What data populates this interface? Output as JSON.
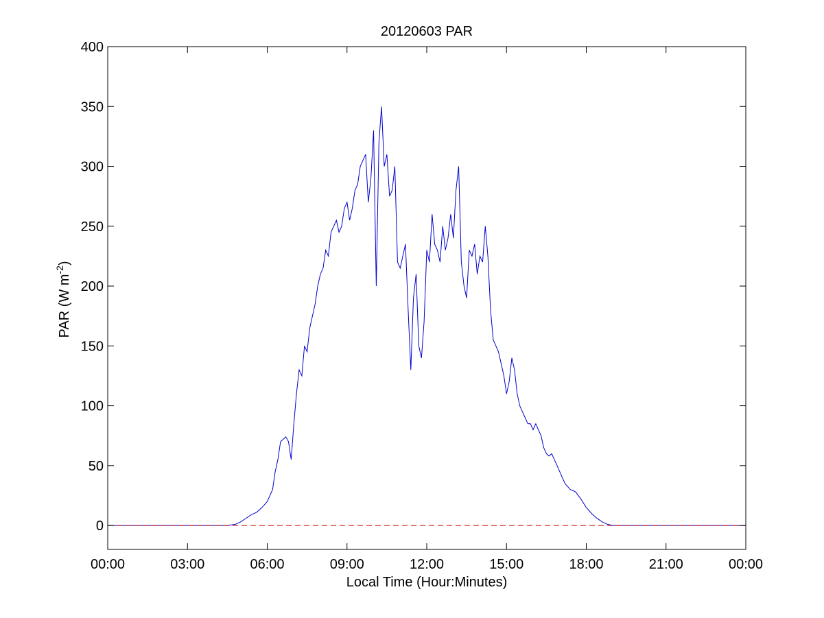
{
  "chart_data": {
    "type": "line",
    "title": "20120603 PAR",
    "xlabel": "Local Time (Hour:Minutes)",
    "ylabel": {
      "main": "PAR (W m",
      "sup": "-2",
      "close": ")"
    },
    "xlim": [
      0,
      24
    ],
    "ylim": [
      -20,
      400
    ],
    "x_ticks": [
      {
        "value": 0,
        "label": "00:00"
      },
      {
        "value": 3,
        "label": "03:00"
      },
      {
        "value": 6,
        "label": "06:00"
      },
      {
        "value": 9,
        "label": "09:00"
      },
      {
        "value": 12,
        "label": "12:00"
      },
      {
        "value": 15,
        "label": "15:00"
      },
      {
        "value": 18,
        "label": "18:00"
      },
      {
        "value": 21,
        "label": "21:00"
      },
      {
        "value": 24,
        "label": "00:00"
      }
    ],
    "y_ticks": [
      {
        "value": 0,
        "label": "0"
      },
      {
        "value": 50,
        "label": "50"
      },
      {
        "value": 100,
        "label": "100"
      },
      {
        "value": 150,
        "label": "150"
      },
      {
        "value": 200,
        "label": "200"
      },
      {
        "value": 250,
        "label": "250"
      },
      {
        "value": 300,
        "label": "300"
      },
      {
        "value": 350,
        "label": "350"
      },
      {
        "value": 400,
        "label": "400"
      }
    ],
    "grid": false,
    "series": [
      {
        "color": "#0000cc",
        "style": "solid",
        "x": [
          0,
          4.5,
          4.8,
          5.0,
          5.2,
          5.4,
          5.6,
          5.8,
          6.0,
          6.2,
          6.3,
          6.4,
          6.5,
          6.6,
          6.7,
          6.8,
          6.9,
          7.0,
          7.1,
          7.2,
          7.3,
          7.4,
          7.5,
          7.6,
          7.7,
          7.8,
          7.9,
          8.0,
          8.1,
          8.2,
          8.3,
          8.4,
          8.5,
          8.6,
          8.7,
          8.8,
          8.9,
          9.0,
          9.1,
          9.2,
          9.3,
          9.4,
          9.5,
          9.6,
          9.7,
          9.8,
          9.9,
          10.0,
          10.1,
          10.2,
          10.3,
          10.4,
          10.5,
          10.6,
          10.7,
          10.8,
          10.9,
          11.0,
          11.1,
          11.2,
          11.3,
          11.4,
          11.5,
          11.6,
          11.7,
          11.8,
          11.9,
          12.0,
          12.1,
          12.2,
          12.3,
          12.4,
          12.5,
          12.6,
          12.7,
          12.8,
          12.9,
          13.0,
          13.1,
          13.2,
          13.3,
          13.4,
          13.5,
          13.6,
          13.7,
          13.8,
          13.9,
          14.0,
          14.1,
          14.2,
          14.3,
          14.4,
          14.5,
          14.6,
          14.7,
          14.8,
          14.9,
          15.0,
          15.1,
          15.2,
          15.3,
          15.4,
          15.5,
          15.6,
          15.7,
          15.8,
          15.9,
          16.0,
          16.1,
          16.2,
          16.3,
          16.4,
          16.5,
          16.6,
          16.7,
          16.8,
          16.9,
          17.0,
          17.1,
          17.2,
          17.4,
          17.6,
          17.8,
          18.0,
          18.2,
          18.4,
          18.6,
          18.8,
          19.0,
          19.3,
          19.6,
          24
        ],
        "y": [
          0,
          0,
          1,
          3,
          6,
          9,
          11,
          15,
          20,
          30,
          45,
          55,
          70,
          72,
          74,
          70,
          55,
          85,
          110,
          130,
          125,
          150,
          145,
          165,
          175,
          185,
          200,
          210,
          215,
          230,
          225,
          245,
          250,
          255,
          245,
          250,
          265,
          270,
          255,
          265,
          280,
          285,
          300,
          305,
          310,
          270,
          290,
          330,
          200,
          320,
          350,
          300,
          310,
          275,
          280,
          300,
          220,
          215,
          225,
          235,
          180,
          130,
          190,
          210,
          150,
          140,
          170,
          230,
          220,
          260,
          235,
          230,
          220,
          250,
          230,
          240,
          260,
          240,
          280,
          300,
          220,
          200,
          190,
          230,
          225,
          235,
          210,
          225,
          220,
          250,
          225,
          180,
          155,
          150,
          145,
          135,
          125,
          110,
          120,
          140,
          130,
          110,
          100,
          95,
          90,
          85,
          85,
          80,
          85,
          80,
          75,
          65,
          60,
          58,
          60,
          55,
          50,
          45,
          40,
          35,
          30,
          28,
          22,
          15,
          10,
          6,
          3,
          1,
          0,
          0,
          0,
          0
        ]
      },
      {
        "color": "#cc0000",
        "style": "dashed",
        "x": [
          0,
          24
        ],
        "y": [
          0,
          0
        ]
      }
    ]
  }
}
